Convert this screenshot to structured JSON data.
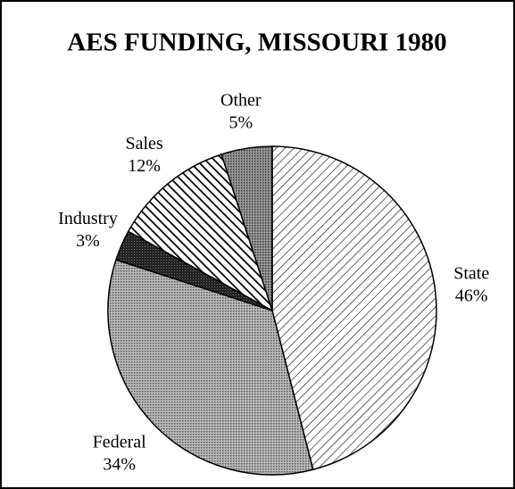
{
  "chart_data": {
    "type": "pie",
    "title": "AES FUNDING, MISSOURI 1980",
    "categories": [
      "State",
      "Federal",
      "Industry",
      "Sales",
      "Other"
    ],
    "values": [
      46,
      34,
      3,
      12,
      5
    ],
    "value_labels": [
      "46%",
      "34%",
      "3%",
      "12%",
      "5%"
    ]
  }
}
